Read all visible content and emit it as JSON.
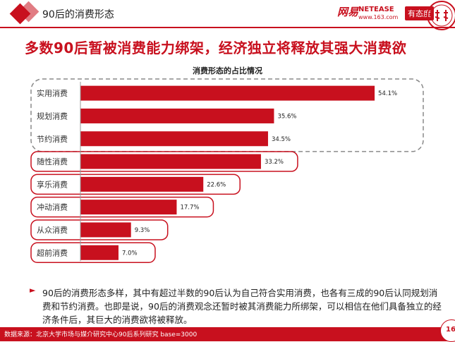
{
  "header": {
    "section_title": "90后的消费形态",
    "netease_cn": "网易",
    "netease_en": "NETEASE",
    "netease_url": "www.163.com",
    "attitude_label": "有态度"
  },
  "headline": "多数90后暂被消费能力绑架，经济独立将释放其强大消费欲",
  "chart_data": {
    "type": "bar",
    "orientation": "horizontal",
    "title": "消费形态的占比情况",
    "categories": [
      "实用消费",
      "规划消费",
      "节约消费",
      "随性消费",
      "享乐消费",
      "冲动消费",
      "从众消费",
      "超前消费"
    ],
    "values": [
      54.1,
      35.6,
      34.5,
      33.2,
      22.6,
      17.7,
      9.3,
      7.0
    ],
    "value_labels": [
      "54.1%",
      "35.6%",
      "34.5%",
      "33.2%",
      "22.6%",
      "17.7%",
      "9.3%",
      "7.0%"
    ],
    "unit": "%",
    "xlim": [
      0,
      55
    ],
    "bar_color": "#c8101e",
    "grouped_dashed": [
      "实用消费",
      "规划消费",
      "节约消费"
    ],
    "highlighted_red_boxes": [
      "随性消费",
      "享乐消费",
      "冲动消费",
      "从众消费",
      "超前消费"
    ]
  },
  "note": {
    "bullet": "►",
    "text": "90后的消费形态多样，其中有超过半数的90后认为自己符合实用消费，也各有三成的90后认同规划消费和节约消费。也即是说，90后的消费观念还暂时被其消费能力所绑架，可以相信在他们具备独立的经济条件后，其巨大的消费欲将被释放。"
  },
  "footer": {
    "source": "数据来源：北京大学市场与媒介研究中心90后系列研究 base=3000",
    "page": "16"
  },
  "colors": {
    "accent": "#c8101e",
    "dashed_box": "#8a8a8a"
  }
}
